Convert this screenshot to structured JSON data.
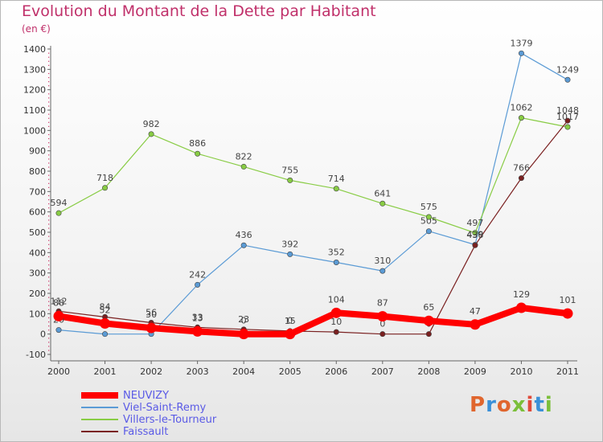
{
  "title": "Evolution du Montant de la Dette par Habitant",
  "unit": "(en €)",
  "logo_text": "Proxiti",
  "chart_data": {
    "type": "line",
    "title": "Evolution du Montant de la Dette par Habitant",
    "ylabel": "(en €)",
    "x": [
      "2000",
      "2001",
      "2002",
      "2003",
      "2004",
      "2005",
      "2006",
      "2007",
      "2008",
      "2009",
      "2010",
      "2011"
    ],
    "ylim": [
      -100,
      1400
    ],
    "yticks": [
      -100,
      0,
      100,
      200,
      300,
      400,
      500,
      600,
      700,
      800,
      900,
      1000,
      1100,
      1200,
      1300,
      1400
    ],
    "grid": false,
    "legend_position": "bottom-left",
    "series": [
      {
        "name": "NEUVIZY",
        "color": "#ff0000",
        "width": 8,
        "values": [
          88,
          52,
          30,
          13,
          0,
          0,
          104,
          87,
          65,
          47,
          129,
          101
        ]
      },
      {
        "name": "Viel-Saint-Remy",
        "color": "#5b9bd5",
        "width": 1.2,
        "values": [
          20,
          0,
          0,
          242,
          436,
          392,
          352,
          310,
          505,
          439,
          1379,
          1249
        ]
      },
      {
        "name": "Villers-le-Tourneur",
        "color": "#88cc44",
        "width": 1.2,
        "values": [
          594,
          718,
          982,
          886,
          822,
          755,
          714,
          641,
          575,
          497,
          1062,
          1017
        ]
      },
      {
        "name": "Faissault",
        "color": "#7a2020",
        "width": 1.2,
        "values": [
          112,
          84,
          56,
          33,
          23,
          15,
          10,
          0,
          0,
          436,
          766,
          1048
        ]
      }
    ]
  }
}
